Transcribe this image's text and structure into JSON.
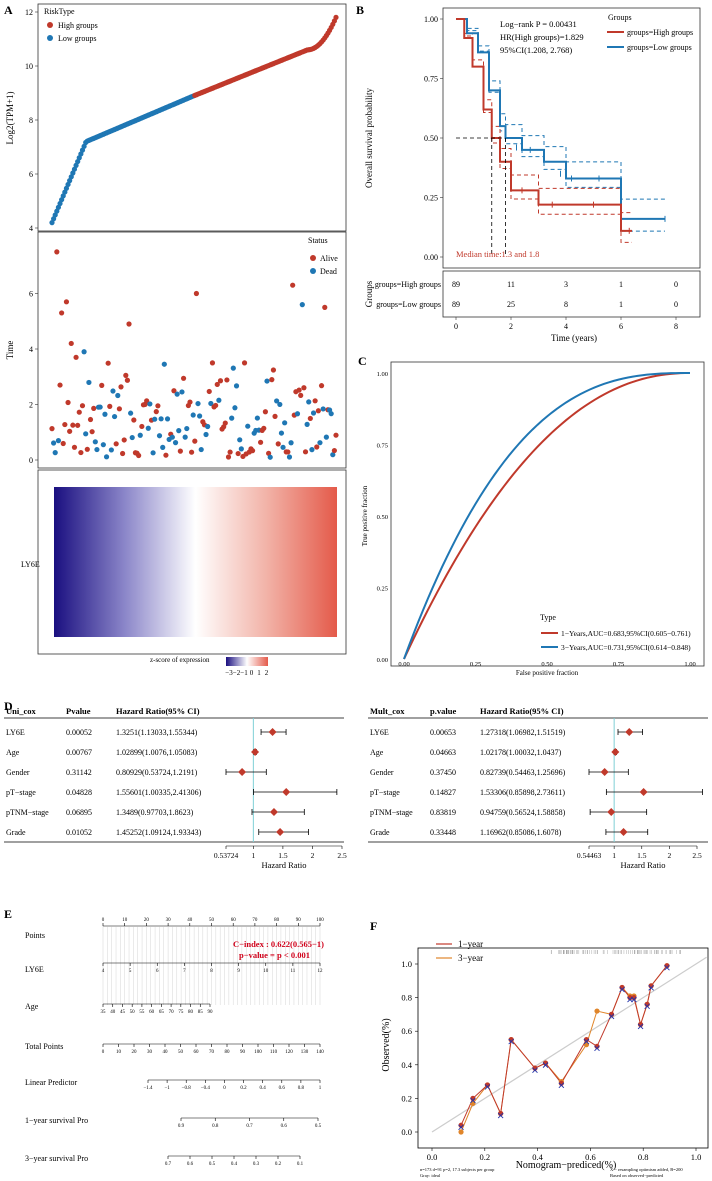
{
  "panel_letters": {
    "a": "A",
    "b": "B",
    "c": "C",
    "d": "D",
    "e": "E",
    "f": "F"
  },
  "colors": {
    "high": "#c0392b",
    "low": "#1f77b4",
    "heat_low": "#1a0f80",
    "heat_mid": "#ffffff",
    "heat_high": "#e74c3c",
    "orange": "#e0852a",
    "grid": "#dddddd",
    "axis": "#333333"
  },
  "panelA": {
    "risk_legend_title": "RiskType",
    "risk_legend": [
      "High groups",
      "Low groups"
    ],
    "ylabel": "Log2(TPM+1)",
    "ylim": [
      4,
      12
    ],
    "yticks": [
      4,
      6,
      8,
      10,
      12
    ],
    "status_title": "Status",
    "status_legend": [
      "Alive",
      "Dead"
    ],
    "time_label": "Time",
    "time_ylim": [
      0,
      8
    ],
    "time_yticks": [
      0,
      2,
      4,
      6
    ],
    "heat_label": "LY6E",
    "zscore_label": "z-score of expression",
    "zscore_ticks": [
      "−3",
      "−2",
      "−1",
      "0",
      "1",
      "2"
    ]
  },
  "panelB": {
    "logrank": "Log−rank P = 0.00431",
    "hr": "HR(High groups)=1.829",
    "ci": "95%CI(1.208, 2.768)",
    "legend_title": "Groups",
    "legend": [
      "groups=High groups",
      "groups=Low groups"
    ],
    "median": "Median time:1.3 and 1.8",
    "ylabel": "Overall survival probability",
    "yticks": [
      "0.00",
      "0.25",
      "0.50",
      "0.75",
      "1.00"
    ],
    "xticks": [
      "0",
      "2",
      "4",
      "6",
      "8"
    ],
    "xlabel": "Time (years)",
    "risk_ylabel": "Groups",
    "risk_rows": [
      {
        "label": "groups=High groups",
        "counts": [
          "89",
          "11",
          "3",
          "1",
          "0"
        ]
      },
      {
        "label": "groups=Low groups",
        "counts": [
          "89",
          "25",
          "8",
          "1",
          "0"
        ]
      }
    ]
  },
  "panelC": {
    "ylabel": "True positive fraction",
    "xlabel": "False positive fraction",
    "ticks": [
      "0.00",
      "0.25",
      "0.50",
      "0.75",
      "1.00"
    ],
    "legend_title": "Type",
    "legend": [
      "1−Years,AUC=0.683,95%CI(0.605−0.761)",
      "3−Years,AUC=0.731,95%CI(0.614−0.848)"
    ]
  },
  "panelD": {
    "uni": {
      "headers": [
        "Uni_cox",
        "Pvalue",
        "Hazard Ratio(95% CI)"
      ],
      "rows": [
        {
          "name": "LY6E",
          "p": "0.00052",
          "hr": "1.3251(1.13033,1.55344)"
        },
        {
          "name": "Age",
          "p": "0.00767",
          "hr": "1.02899(1.0076,1.05083)"
        },
        {
          "name": "Gender",
          "p": "0.31142",
          "hr": "0.80929(0.53724,1.2191)"
        },
        {
          "name": "pT−stage",
          "p": "0.04828",
          "hr": "1.55601(1.00335,2.41306)"
        },
        {
          "name": "pTNM−stage",
          "p": "0.06895",
          "hr": "1.3489(0.97703,1.8623)"
        },
        {
          "name": "Grade",
          "p": "0.01052",
          "hr": "1.45252(1.09124,1.93343)"
        }
      ],
      "axis_ticks": [
        "0.53724",
        "1",
        "1.5",
        "2",
        "2.5"
      ],
      "axis_label": "Hazard Ratio"
    },
    "mult": {
      "headers": [
        "Mult_cox",
        "p.value",
        "Hazard Ratio(95% CI)"
      ],
      "rows": [
        {
          "name": "LY6E",
          "p": "0.00653",
          "hr": "1.27318(1.06982,1.51519)"
        },
        {
          "name": "Age",
          "p": "0.04663",
          "hr": "1.02178(1.00032,1.0437)"
        },
        {
          "name": "Gender",
          "p": "0.37450",
          "hr": "0.82739(0.54463,1.25696)"
        },
        {
          "name": "pT−stage",
          "p": "0.14827",
          "hr": "1.53306(0.85898,2.73611)"
        },
        {
          "name": "pTNM−stage",
          "p": "0.83819",
          "hr": "0.94759(0.56524,1.58858)"
        },
        {
          "name": "Grade",
          "p": "0.33448",
          "hr": "1.16962(0.85086,1.6078)"
        }
      ],
      "axis_ticks": [
        "0.54463",
        "1",
        "1.5",
        "2",
        "2.5"
      ],
      "axis_label": "Hazard Ratio"
    }
  },
  "panelE": {
    "rows": [
      "Points",
      "LY6E",
      "Age",
      "Total Points",
      "Linear Predictor",
      "1−year survival Pro",
      "3−year survival Pro"
    ],
    "points_ticks": [
      "0",
      "10",
      "20",
      "30",
      "40",
      "50",
      "60",
      "70",
      "80",
      "90",
      "100"
    ],
    "ly6e_ticks": [
      "4",
      "5",
      "6",
      "7",
      "8",
      "9",
      "10",
      "11",
      "12"
    ],
    "age_ticks": [
      "35",
      "40",
      "45",
      "50",
      "55",
      "60",
      "65",
      "70",
      "75",
      "80",
      "85",
      "90"
    ],
    "total_ticks": [
      "0",
      "10",
      "20",
      "30",
      "40",
      "50",
      "60",
      "70",
      "80",
      "90",
      "100",
      "110",
      "120",
      "130",
      "140"
    ],
    "lp_ticks": [
      "−1.4",
      "−1",
      "−0.8",
      "−0.4",
      "0",
      "0.2",
      "0.4",
      "0.6",
      "0.8",
      "1"
    ],
    "y1_ticks": [
      "0.9",
      "0.8",
      "0.7",
      "0.6",
      "0.5"
    ],
    "y3_ticks": [
      "0.7",
      "0.6",
      "0.5",
      "0.4",
      "0.3",
      "0.2",
      "0.1"
    ],
    "cindex": "C−index : 0.622(0.565−1)",
    "pvalue": "p−value = p < 0.001"
  },
  "panelF": {
    "legend": [
      "1−year",
      "3−year"
    ],
    "ylabel": "Observed(%)",
    "xlabel": "Nomogram−prediced(%)",
    "yticks": [
      "0.0",
      "0.2",
      "0.4",
      "0.6",
      "0.8",
      "1.0"
    ],
    "xticks": [
      "0.0",
      "0.2",
      "0.4",
      "0.6",
      "0.8",
      "1.0"
    ],
    "foot_left1": "n=173 d=91 p=2, 17.3 subjects per group",
    "foot_left2": "Gray: ideal",
    "foot_right1": "X − resampling optimism added, B=200",
    "foot_right2": "Based on observed−predicted"
  },
  "chart_data": [
    {
      "type": "scatter",
      "name": "risk-expression",
      "ylabel": "Log2(TPM+1)",
      "ylim": [
        4,
        12
      ],
      "description_points": "sorted LY6E expression per patient, low group then high group",
      "key_values": [
        4.2,
        4.7,
        5.0,
        5.5,
        6.2,
        7.0,
        7.6,
        8.0,
        8.4,
        8.8,
        9.0,
        9.4,
        9.8,
        10.3,
        10.8,
        11.8
      ]
    },
    {
      "type": "line",
      "name": "kaplan-meier",
      "series": [
        {
          "name": "High groups",
          "x": [
            0,
            0.3,
            0.6,
            1.0,
            1.3,
            1.6,
            2.0,
            3.0,
            4.5,
            5.4,
            6.0,
            6.4
          ],
          "y": [
            1.0,
            0.92,
            0.8,
            0.62,
            0.5,
            0.4,
            0.28,
            0.22,
            0.22,
            0.22,
            0.11,
            0.11
          ]
        },
        {
          "name": "Low groups",
          "x": [
            0,
            0.4,
            0.8,
            1.2,
            1.6,
            1.8,
            2.4,
            3.2,
            4.0,
            5.6,
            6.0,
            7.6
          ],
          "y": [
            1.0,
            0.94,
            0.86,
            0.7,
            0.55,
            0.5,
            0.45,
            0.4,
            0.33,
            0.33,
            0.16,
            0.16
          ]
        }
      ],
      "xlim": [
        0,
        8
      ],
      "ylim": [
        0,
        1
      ]
    },
    {
      "type": "line",
      "name": "roc",
      "series": [
        {
          "name": "1-Years",
          "auc": 0.683
        },
        {
          "name": "3-Years",
          "auc": 0.731
        }
      ],
      "xlim": [
        0,
        1
      ],
      "ylim": [
        0,
        1
      ]
    },
    {
      "type": "scatter",
      "name": "calibration",
      "series": [
        {
          "name": "1-year",
          "x": [
            0.11,
            0.155,
            0.21,
            0.26,
            0.3,
            0.39,
            0.43,
            0.49,
            0.585,
            0.625,
            0.68,
            0.72,
            0.75,
            0.765,
            0.79,
            0.815,
            0.83,
            0.89
          ],
          "y": [
            0.04,
            0.2,
            0.28,
            0.11,
            0.55,
            0.38,
            0.41,
            0.29,
            0.55,
            0.51,
            0.7,
            0.86,
            0.8,
            0.8,
            0.64,
            0.76,
            0.87,
            0.99
          ]
        },
        {
          "name": "3-year",
          "x": [
            0.11,
            0.155,
            0.21,
            0.26,
            0.3,
            0.39,
            0.43,
            0.49,
            0.585,
            0.625,
            0.68,
            0.72,
            0.75,
            0.765,
            0.79,
            0.815,
            0.83,
            0.89
          ],
          "y": [
            0.0,
            0.17,
            0.28,
            0.11,
            0.55,
            0.38,
            0.41,
            0.3,
            0.52,
            0.72,
            0.7,
            0.86,
            0.81,
            0.81,
            0.64,
            0.76,
            0.87,
            0.99
          ]
        }
      ],
      "xlim": [
        0,
        1
      ],
      "ylim": [
        0,
        1
      ]
    }
  ]
}
